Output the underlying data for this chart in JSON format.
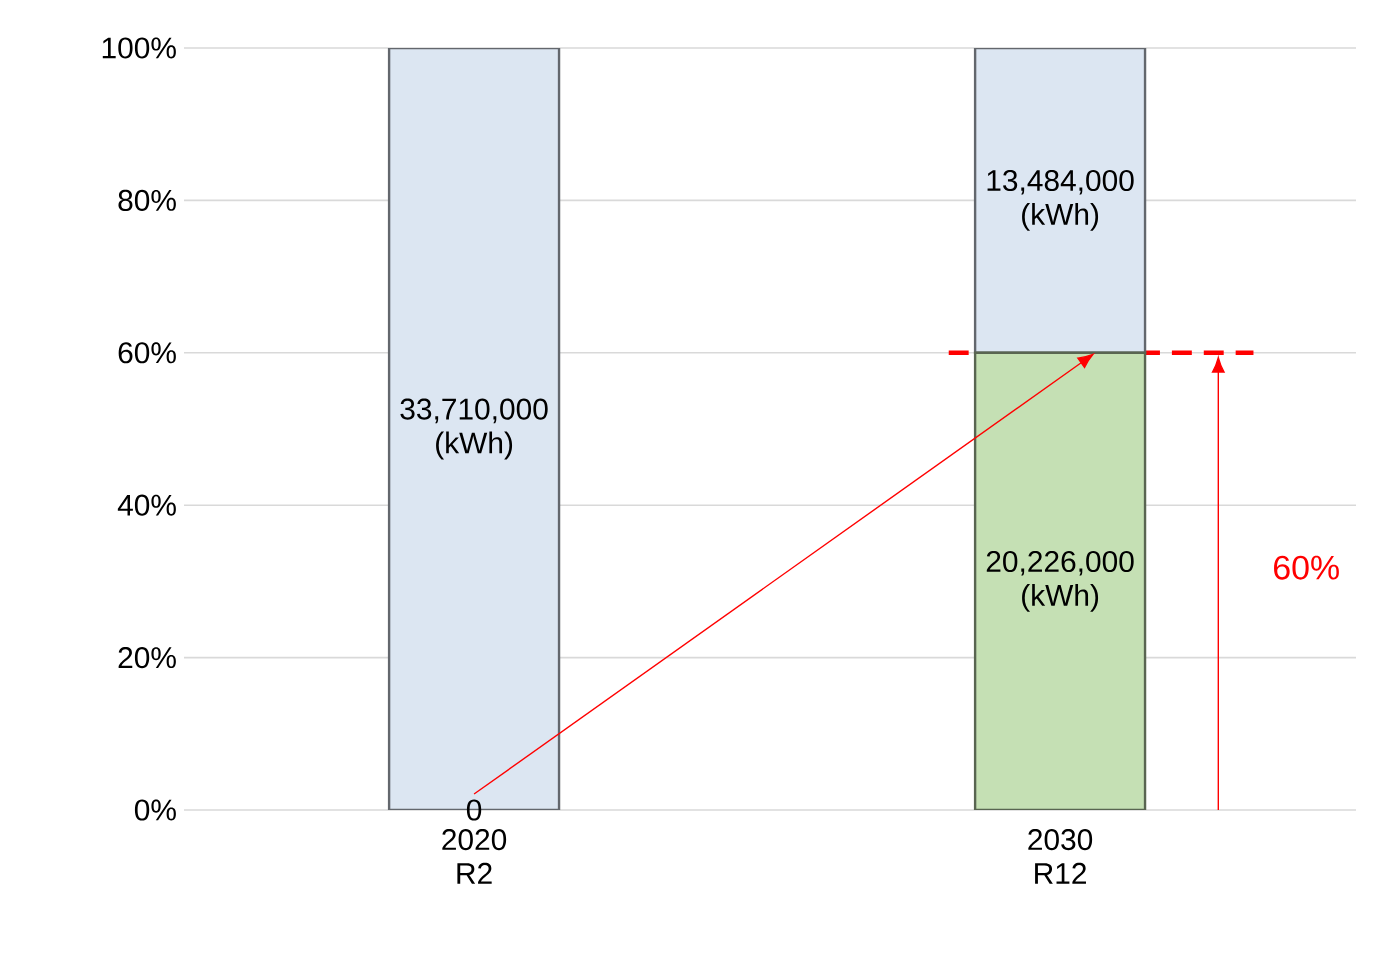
{
  "chart_data": {
    "type": "bar",
    "stacked": true,
    "categories": [
      "2020 R2",
      "2030 R12"
    ],
    "series": [
      {
        "color": "#c5e0b4",
        "values": [
          0,
          60
        ]
      },
      {
        "color": "#dce6f2",
        "values": [
          100,
          40
        ]
      }
    ],
    "ylim": [
      0,
      100
    ],
    "yticks": [
      {
        "value": 0,
        "label": "0%"
      },
      {
        "value": 20,
        "label": "20%"
      },
      {
        "value": 40,
        "label": "40%"
      },
      {
        "value": 60,
        "label": "60%"
      },
      {
        "value": 80,
        "label": "80%"
      },
      {
        "value": 100,
        "label": "100%"
      }
    ],
    "grid": "y",
    "annotations": [
      {
        "text": "0",
        "x": "2020 R2",
        "y": 0
      },
      "33,710,000 (kWh)",
      "13,484,000 (kWh)",
      "20,226,000 (kWh)"
    ],
    "ref_lines": [
      {
        "axis": "y",
        "value": 60,
        "label": "60%",
        "color": "#ff0000",
        "line_style": "dashed"
      }
    ]
  }
}
